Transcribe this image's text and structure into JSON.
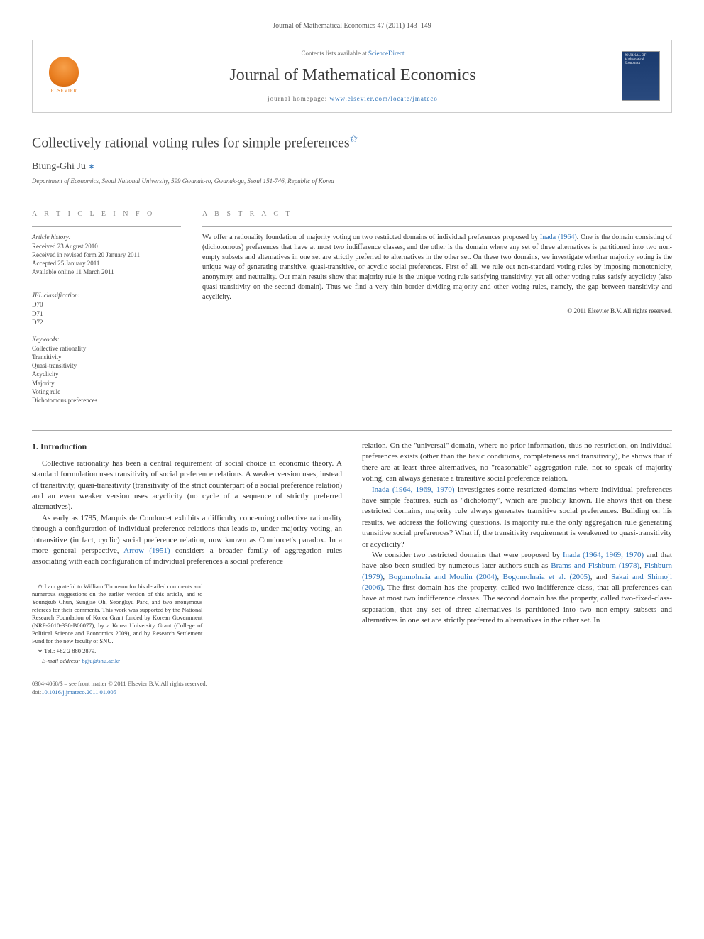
{
  "header": {
    "citation": "Journal of Mathematical Economics 47 (2011) 143–149",
    "contents_prefix": "Contents lists available at ",
    "contents_link": "ScienceDirect",
    "journal_name": "Journal of Mathematical Economics",
    "homepage_prefix": "journal homepage: ",
    "homepage_url": "www.elsevier.com/locate/jmateco",
    "elsevier_label": "ELSEVIER",
    "cover_label": "JOURNAL OF Mathematical Economics"
  },
  "article": {
    "title": "Collectively rational voting rules for simple preferences",
    "title_star": "✩",
    "author": "Biung-Ghi Ju",
    "author_mark": "∗",
    "affiliation": "Department of Economics, Seoul National University, 599 Gwanak-ro, Gwanak-gu, Seoul 151-746, Republic of Korea"
  },
  "info": {
    "heading": "A R T I C L E   I N F O",
    "history_label": "Article history:",
    "history": [
      "Received 23 August 2010",
      "Received in revised form 20 January 2011",
      "Accepted 25 January 2011",
      "Available online 11 March 2011"
    ],
    "jel_label": "JEL classification:",
    "jel": [
      "D70",
      "D71",
      "D72"
    ],
    "keywords_label": "Keywords:",
    "keywords": [
      "Collective rationality",
      "Transitivity",
      "Quasi-transitivity",
      "Acyclicity",
      "Majority",
      "Voting rule",
      "Dichotomous preferences"
    ]
  },
  "abstract": {
    "heading": "A B S T R A C T",
    "text_pre": "We offer a rationality foundation of majority voting on two restricted domains of individual preferences proposed by ",
    "inada_link": "Inada (1964)",
    "text_post": ". One is the domain consisting of (dichotomous) preferences that have at most two indifference classes, and the other is the domain where any set of three alternatives is partitioned into two non-empty subsets and alternatives in one set are strictly preferred to alternatives in the other set. On these two domains, we investigate whether majority voting is the unique way of generating transitive, quasi-transitive, or acyclic social preferences. First of all, we rule out non-standard voting rules by imposing monotonicity, anonymity, and neutrality. Our main results show that majority rule is the unique voting rule satisfying transitivity, yet all other voting rules satisfy acyclicity (also quasi-transitivity on the second domain). Thus we find a very thin border dividing majority and other voting rules, namely, the gap between transitivity and acyclicity.",
    "copyright": "© 2011 Elsevier B.V. All rights reserved."
  },
  "body": {
    "section_heading": "1. Introduction",
    "col1_p1": "Collective rationality has been a central requirement of social choice in economic theory. A standard formulation uses transitivity of social preference relations. A weaker version uses, instead of transitivity, quasi-transitivity (transitivity of the strict counterpart of a social preference relation) and an even weaker version uses acyclicity (no cycle of a sequence of strictly preferred alternatives).",
    "col1_p2_pre": "As early as 1785, Marquis de Condorcet exhibits a difficulty concerning collective rationality through a configuration of individual preference relations that leads to, under majority voting, an intransitive (in fact, cyclic) social preference relation, now known as Condorcet's paradox. In a more general perspective, ",
    "arrow_link": "Arrow (1951)",
    "col1_p2_post": " considers a broader family of aggregation rules associating with each configuration of individual preferences a social preference",
    "col2_p1": "relation. On the \"universal\" domain, where no prior information, thus no restriction, on individual preferences exists (other than the basic conditions, completeness and transitivity), he shows that if there are at least three alternatives, no \"reasonable\" aggregation rule, not to speak of majority voting, can always generate a transitive social preference relation.",
    "col2_p2_link": "Inada (1964, 1969, 1970)",
    "col2_p2": " investigates some restricted domains where individual preferences have simple features, such as \"dichotomy\", which are publicly known. He shows that on these restricted domains, majority rule always generates transitive social preferences. Building on his results, we address the following questions. Is majority rule the only aggregation rule generating transitive social preferences? What if, the transitivity requirement is weakened to quasi-transitivity or acyclicity?",
    "col2_p3_pre": "We consider two restricted domains that were proposed by ",
    "col2_p3_link1": "Inada (1964, 1969, 1970)",
    "col2_p3_mid": " and that have also been studied by numerous later authors such as ",
    "col2_p3_link2": "Brams and Fishburn (1978)",
    "col2_p3_link3": "Fishburn (1979)",
    "col2_p3_link4": "Bogomolnaia and Moulin (2004)",
    "col2_p3_link5": "Bogomolnaia et al. (2005)",
    "col2_p3_and": ", and ",
    "col2_p3_link6": "Sakai and Shimoji (2006)",
    "col2_p3_post": ". The first domain has the property, called two-indifference-class, that all preferences can have at most two indifference classes. The second domain has the property, called two-fixed-class-separation, that any set of three alternatives is partitioned into two non-empty subsets and alternatives in one set are strictly preferred to alternatives in the other set. In"
  },
  "footnotes": {
    "fn1_mark": "✩",
    "fn1": " I am grateful to William Thomson for his detailed comments and numerous suggestions on the earlier version of this article, and to Youngsub Chun, Sungjae Oh, Seongkyu Park, and two anonymous referees for their comments. This work was supported by the National Research Foundation of Korea Grant funded by Korean Government (NRF-2010-330-B00077), by a Korea University Grant (College of Political Science and Economics 2009), and by Research Settlement Fund for the new faculty of SNU.",
    "fn2_mark": "∗",
    "fn2_label": " Tel.: +82 2 880 2879.",
    "email_label": "E-mail address: ",
    "email": "bgju@snu.ac.kr"
  },
  "footer": {
    "issn": "0304-4068/$ – see front matter © 2011 Elsevier B.V. All rights reserved.",
    "doi_label": "doi:",
    "doi": "10.1016/j.jmateco.2011.01.005"
  },
  "colors": {
    "link": "#2a6fb5",
    "text": "#333333",
    "rule": "#aaaaaa",
    "elsevier": "#e87c1e"
  },
  "typography": {
    "body_fontsize_pt": 11,
    "title_fontsize_pt": 20,
    "journal_title_fontsize_pt": 24,
    "abstract_fontsize_pt": 10,
    "info_fontsize_pt": 9,
    "footnote_fontsize_pt": 8.5
  }
}
